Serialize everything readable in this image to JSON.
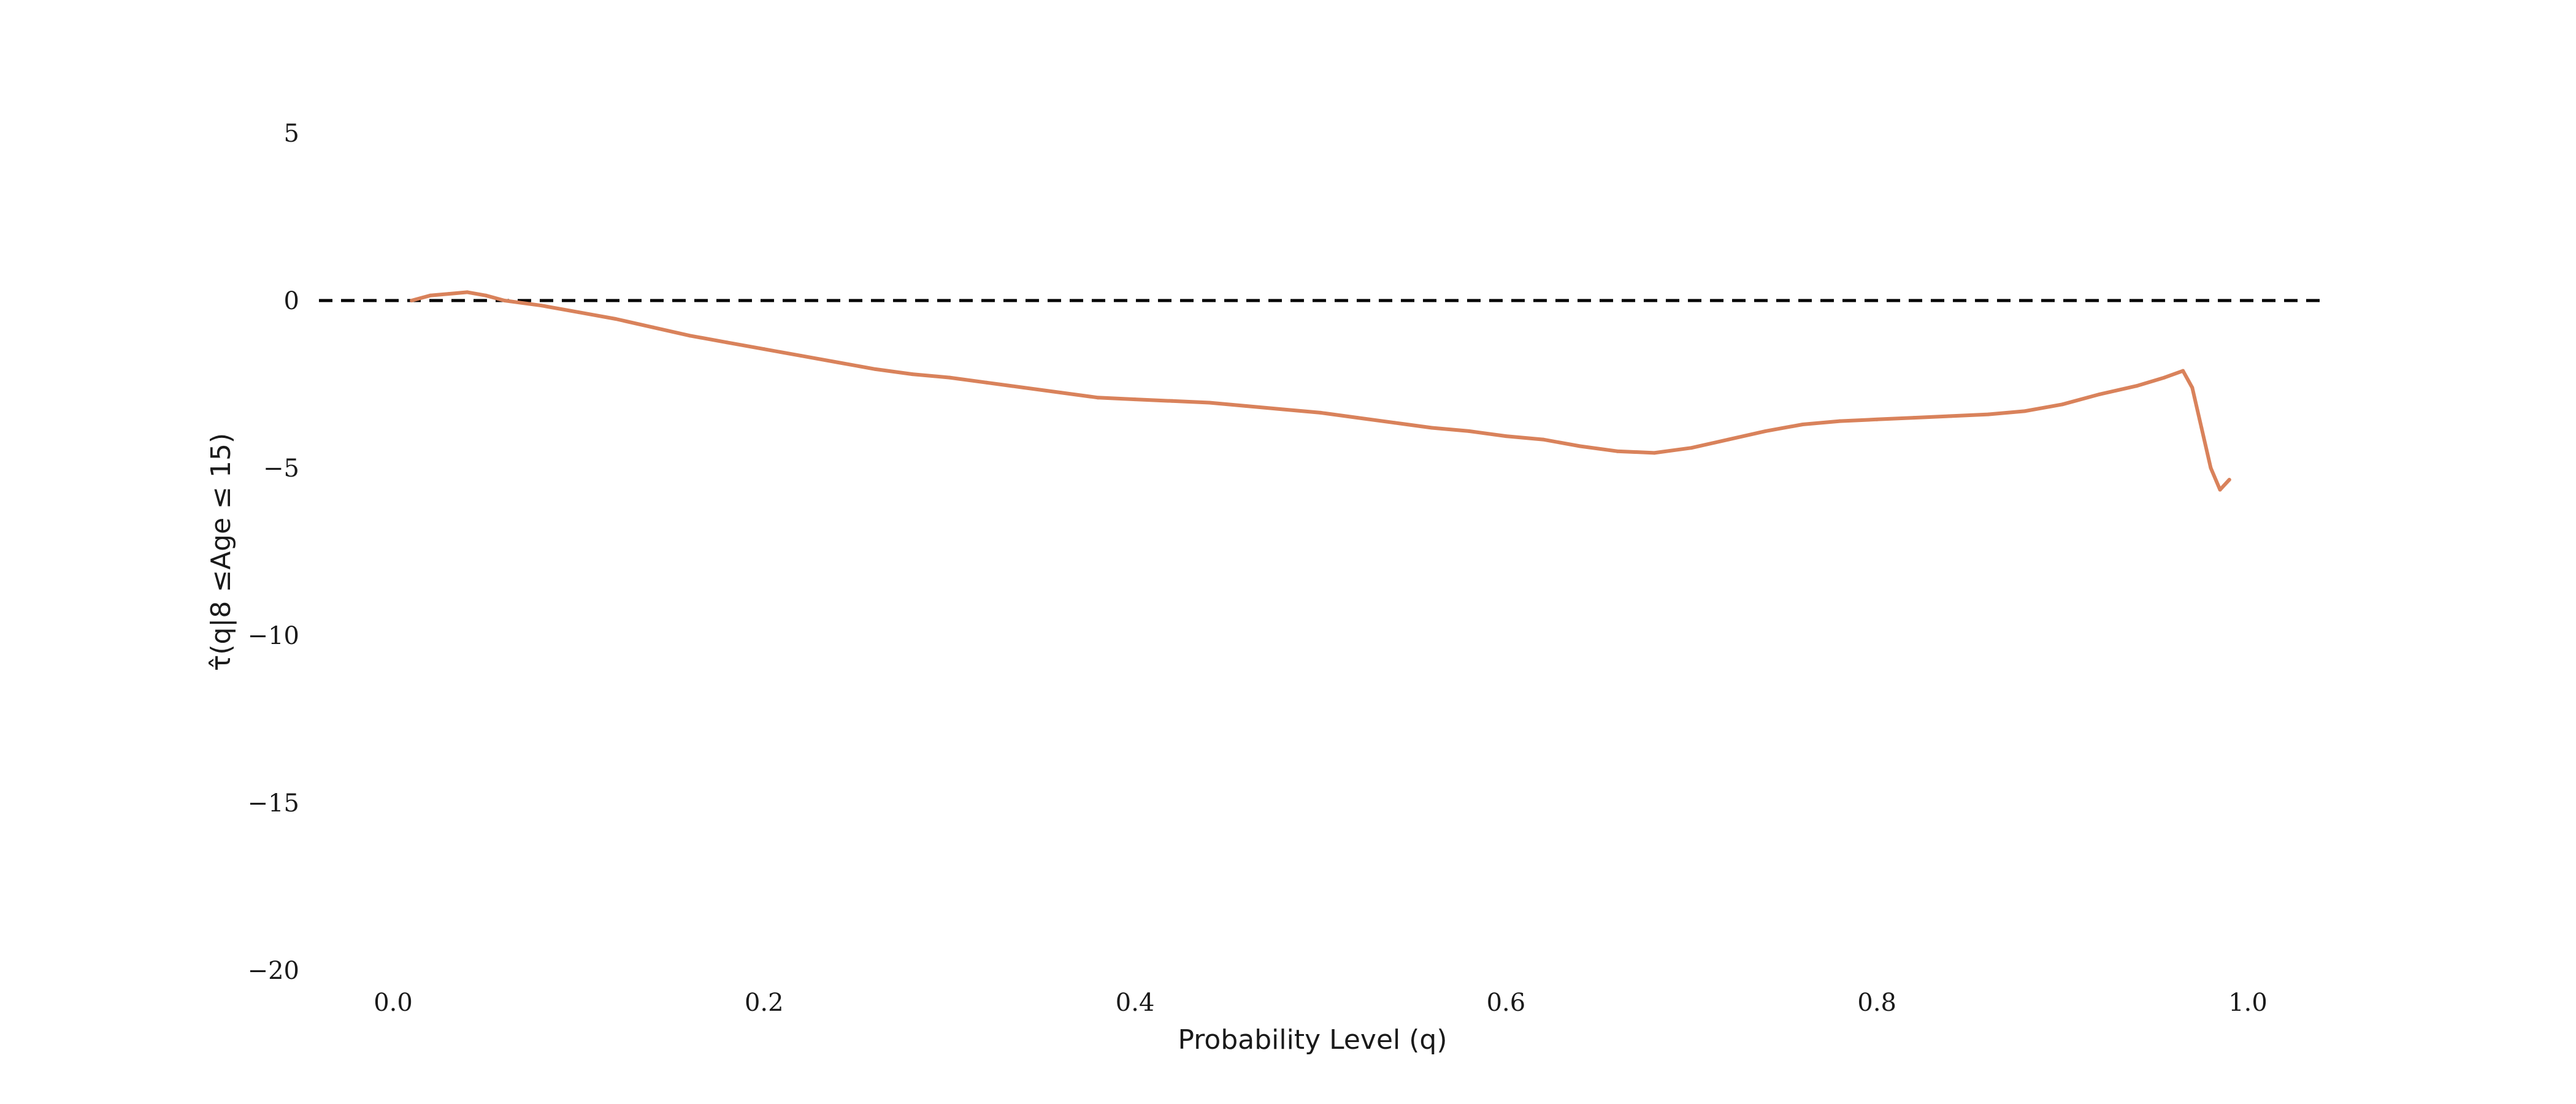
{
  "chart_data": {
    "type": "line",
    "title": "",
    "xlabel": "Probability Level (q)",
    "ylabel": "τ̂(q|8 ≤Age ≤ 15)",
    "xlim": [
      -0.05,
      1.04
    ],
    "ylim": [
      -20,
      7.5
    ],
    "xticks": [
      0.0,
      0.2,
      0.4,
      0.6,
      0.8,
      1.0
    ],
    "xtick_labels": [
      "0.0",
      "0.2",
      "0.4",
      "0.6",
      "0.8",
      "1.0"
    ],
    "yticks": [
      5,
      0,
      -5,
      -10,
      -15,
      -20
    ],
    "ytick_labels": [
      "5",
      "0",
      "−5",
      "−10",
      "−15",
      "−20"
    ],
    "grid": false,
    "reference_line": {
      "y": 0,
      "x_range": [
        -0.04,
        1.04
      ],
      "style": "dashed",
      "color": "#000000"
    },
    "series": [
      {
        "color": "#d9825b",
        "x": [
          0.01,
          0.02,
          0.03,
          0.04,
          0.05,
          0.06,
          0.08,
          0.1,
          0.12,
          0.14,
          0.16,
          0.18,
          0.2,
          0.22,
          0.24,
          0.26,
          0.28,
          0.3,
          0.32,
          0.34,
          0.36,
          0.38,
          0.4,
          0.42,
          0.44,
          0.46,
          0.48,
          0.5,
          0.52,
          0.54,
          0.56,
          0.58,
          0.6,
          0.62,
          0.64,
          0.66,
          0.68,
          0.7,
          0.72,
          0.74,
          0.76,
          0.78,
          0.8,
          0.82,
          0.84,
          0.86,
          0.88,
          0.9,
          0.92,
          0.94,
          0.955,
          0.965,
          0.97,
          0.975,
          0.98,
          0.985,
          0.99
        ],
        "y": [
          0.0,
          0.15,
          0.2,
          0.25,
          0.15,
          0.0,
          -0.15,
          -0.35,
          -0.55,
          -0.8,
          -1.05,
          -1.25,
          -1.45,
          -1.65,
          -1.85,
          -2.05,
          -2.2,
          -2.3,
          -2.45,
          -2.6,
          -2.75,
          -2.9,
          -2.95,
          -3.0,
          -3.05,
          -3.15,
          -3.25,
          -3.35,
          -3.5,
          -3.65,
          -3.8,
          -3.9,
          -4.05,
          -4.15,
          -4.35,
          -4.5,
          -4.55,
          -4.4,
          -4.15,
          -3.9,
          -3.7,
          -3.6,
          -3.55,
          -3.5,
          -3.45,
          -3.4,
          -3.3,
          -3.1,
          -2.8,
          -2.55,
          -2.3,
          -2.1,
          -2.6,
          -3.8,
          -5.0,
          -5.65,
          -5.35
        ]
      }
    ]
  }
}
